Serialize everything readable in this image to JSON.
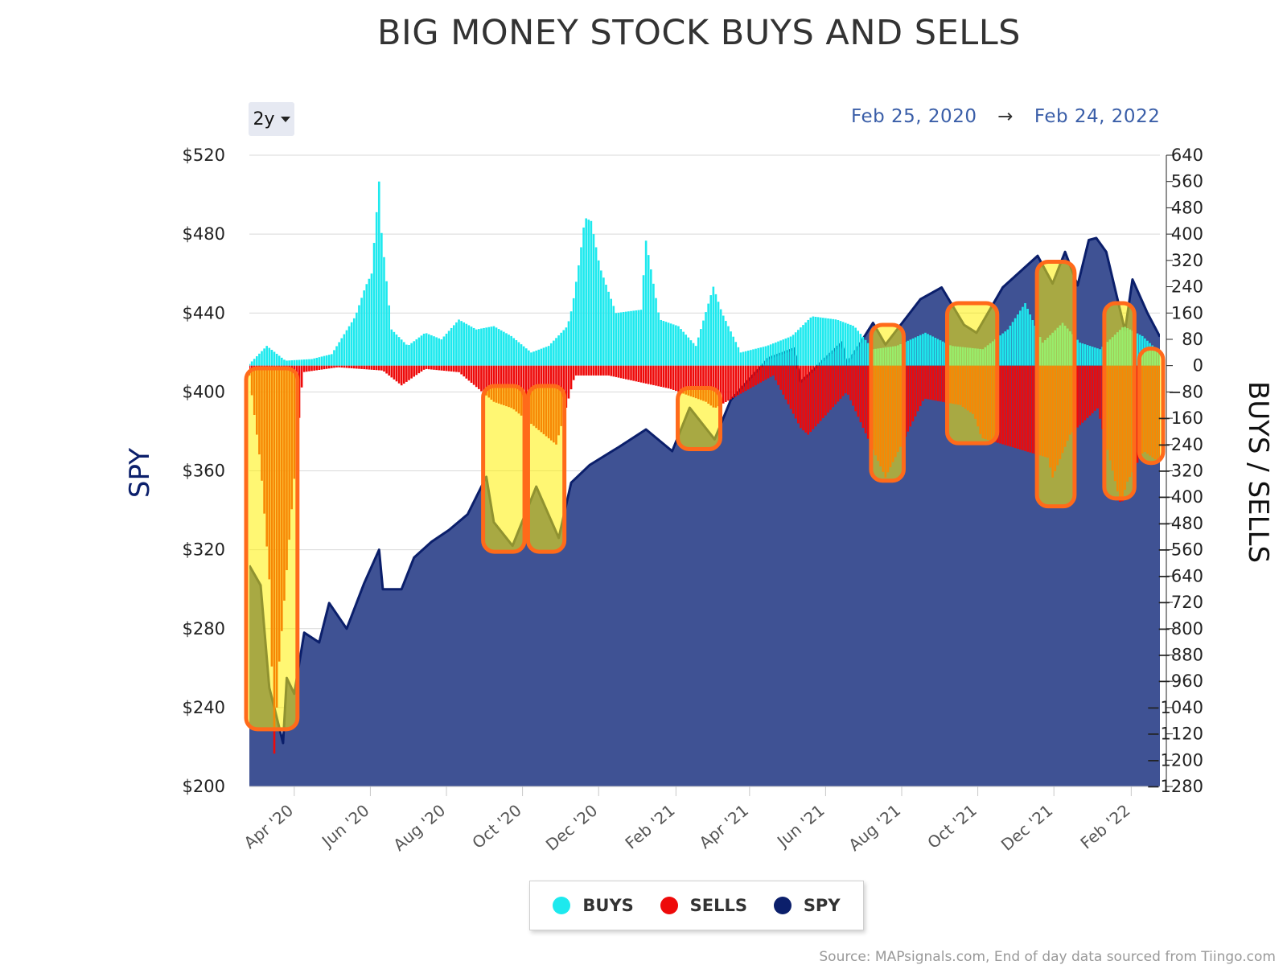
{
  "title": "BIG MONEY STOCK BUYS AND SELLS",
  "range_selector": {
    "label": "2y"
  },
  "date_range": {
    "start": "Feb 25, 2020",
    "arrow": "→",
    "end": "Feb 24, 2022"
  },
  "legend": [
    {
      "label": "BUYS",
      "color": "#1de9ee"
    },
    {
      "label": "SELLS",
      "color": "#ee0a0a"
    },
    {
      "label": "SPY",
      "color": "#0b1f6b"
    }
  ],
  "source": "Source: MAPsignals.com, End of day data sourced from Tiingo.com",
  "colors": {
    "spy_fill": "#3f5294",
    "spy_line": "#0b1f6b",
    "buys": "#1de9ee",
    "sells": "#ee0a0a",
    "highlight_fill": "#fff000",
    "highlight_border": "#ff6a1a"
  },
  "chart_data": {
    "type": "area",
    "x_start": "2020-02-25",
    "x_end": "2022-02-24",
    "x_tick_labels": [
      "Apr '20",
      "Jun '20",
      "Aug '20",
      "Oct '20",
      "Dec '20",
      "Feb '21",
      "Apr '21",
      "Jun '21",
      "Aug '21",
      "Oct '21",
      "Dec '21",
      "Feb '22"
    ],
    "left_axis": {
      "title": "SPY",
      "ylim": [
        200,
        520
      ],
      "ticks": [
        200,
        240,
        280,
        320,
        360,
        400,
        440,
        480,
        520
      ],
      "tick_labels": [
        "$200",
        "$240",
        "$280",
        "$320",
        "$360",
        "$400",
        "$440",
        "$480",
        "$520"
      ]
    },
    "right_axis": {
      "title": "BUYS / SELLS",
      "ylim": [
        -1280,
        640
      ],
      "ticks": [
        640,
        560,
        480,
        400,
        320,
        240,
        160,
        80,
        0,
        -80,
        -160,
        -240,
        -320,
        -400,
        -480,
        -560,
        -640,
        -720,
        -800,
        -880,
        -960,
        -1040,
        -1120,
        -1200,
        -1280
      ]
    },
    "series": [
      {
        "name": "SPY",
        "axis": "left",
        "points": [
          [
            "2020-02-25",
            312
          ],
          [
            "2020-03-05",
            302
          ],
          [
            "2020-03-12",
            250
          ],
          [
            "2020-03-16",
            240
          ],
          [
            "2020-03-23",
            222
          ],
          [
            "2020-03-26",
            255
          ],
          [
            "2020-04-01",
            247
          ],
          [
            "2020-04-09",
            278
          ],
          [
            "2020-04-21",
            273
          ],
          [
            "2020-04-29",
            293
          ],
          [
            "2020-05-13",
            280
          ],
          [
            "2020-05-27",
            303
          ],
          [
            "2020-06-08",
            320
          ],
          [
            "2020-06-11",
            300
          ],
          [
            "2020-06-26",
            300
          ],
          [
            "2020-07-06",
            316
          ],
          [
            "2020-07-20",
            324
          ],
          [
            "2020-08-03",
            330
          ],
          [
            "2020-08-18",
            338
          ],
          [
            "2020-09-02",
            357
          ],
          [
            "2020-09-08",
            334
          ],
          [
            "2020-09-23",
            322
          ],
          [
            "2020-10-12",
            352
          ],
          [
            "2020-10-30",
            326
          ],
          [
            "2020-11-09",
            354
          ],
          [
            "2020-11-24",
            363
          ],
          [
            "2020-12-17",
            372
          ],
          [
            "2021-01-08",
            381
          ],
          [
            "2021-01-29",
            370
          ],
          [
            "2021-02-12",
            392
          ],
          [
            "2021-03-04",
            376
          ],
          [
            "2021-03-17",
            396
          ],
          [
            "2021-04-16",
            417
          ],
          [
            "2021-05-07",
            422
          ],
          [
            "2021-05-12",
            405
          ],
          [
            "2021-06-14",
            425
          ],
          [
            "2021-06-18",
            414
          ],
          [
            "2021-07-09",
            435
          ],
          [
            "2021-07-19",
            424
          ],
          [
            "2021-08-16",
            447
          ],
          [
            "2021-09-02",
            453
          ],
          [
            "2021-09-20",
            434
          ],
          [
            "2021-09-30",
            430
          ],
          [
            "2021-10-21",
            453
          ],
          [
            "2021-11-18",
            469
          ],
          [
            "2021-11-30",
            455
          ],
          [
            "2021-12-10",
            471
          ],
          [
            "2021-12-20",
            454
          ],
          [
            "2021-12-29",
            477
          ],
          [
            "2022-01-04",
            478
          ],
          [
            "2022-01-12",
            471
          ],
          [
            "2022-01-27",
            431
          ],
          [
            "2022-02-02",
            457
          ],
          [
            "2022-02-14",
            440
          ],
          [
            "2022-02-24",
            428
          ]
        ]
      },
      {
        "name": "BUYS",
        "axis": "right",
        "points": [
          [
            "2020-02-25",
            5
          ],
          [
            "2020-03-10",
            60
          ],
          [
            "2020-03-25",
            15
          ],
          [
            "2020-04-15",
            20
          ],
          [
            "2020-05-01",
            35
          ],
          [
            "2020-05-20",
            150
          ],
          [
            "2020-05-28",
            240
          ],
          [
            "2020-06-02",
            280
          ],
          [
            "2020-06-08",
            560
          ],
          [
            "2020-06-09",
            440
          ],
          [
            "2020-06-18",
            110
          ],
          [
            "2020-07-01",
            60
          ],
          [
            "2020-07-15",
            100
          ],
          [
            "2020-07-28",
            80
          ],
          [
            "2020-08-11",
            140
          ],
          [
            "2020-08-25",
            110
          ],
          [
            "2020-09-08",
            120
          ],
          [
            "2020-09-22",
            90
          ],
          [
            "2020-10-08",
            40
          ],
          [
            "2020-10-22",
            60
          ],
          [
            "2020-11-06",
            120
          ],
          [
            "2020-11-10",
            180
          ],
          [
            "2020-11-16",
            330
          ],
          [
            "2020-11-20",
            450
          ],
          [
            "2020-11-25",
            440
          ],
          [
            "2020-12-02",
            300
          ],
          [
            "2020-12-15",
            160
          ],
          [
            "2021-01-04",
            170
          ],
          [
            "2021-01-08",
            380
          ],
          [
            "2021-01-19",
            140
          ],
          [
            "2021-02-03",
            120
          ],
          [
            "2021-02-17",
            60
          ],
          [
            "2021-03-03",
            240
          ],
          [
            "2021-03-10",
            160
          ],
          [
            "2021-03-25",
            40
          ],
          [
            "2021-04-15",
            60
          ],
          [
            "2021-05-05",
            90
          ],
          [
            "2021-05-21",
            150
          ],
          [
            "2021-06-10",
            140
          ],
          [
            "2021-06-24",
            120
          ],
          [
            "2021-07-09",
            50
          ],
          [
            "2021-07-28",
            60
          ],
          [
            "2021-08-20",
            100
          ],
          [
            "2021-09-10",
            60
          ],
          [
            "2021-10-05",
            50
          ],
          [
            "2021-10-25",
            110
          ],
          [
            "2021-11-08",
            190
          ],
          [
            "2021-11-22",
            70
          ],
          [
            "2021-12-08",
            130
          ],
          [
            "2021-12-22",
            70
          ],
          [
            "2022-01-07",
            50
          ],
          [
            "2022-01-26",
            120
          ],
          [
            "2022-02-10",
            90
          ],
          [
            "2022-02-24",
            40
          ]
        ]
      },
      {
        "name": "SELLS",
        "axis": "right",
        "points": [
          [
            "2020-02-25",
            -30
          ],
          [
            "2020-03-05",
            -300
          ],
          [
            "2020-03-12",
            -650
          ],
          [
            "2020-03-16",
            -1180
          ],
          [
            "2020-03-20",
            -900
          ],
          [
            "2020-04-08",
            -20
          ],
          [
            "2020-05-06",
            -5
          ],
          [
            "2020-06-11",
            -15
          ],
          [
            "2020-06-26",
            -60
          ],
          [
            "2020-07-15",
            -10
          ],
          [
            "2020-08-11",
            -20
          ],
          [
            "2020-09-08",
            -110
          ],
          [
            "2020-09-23",
            -130
          ],
          [
            "2020-10-28",
            -240
          ],
          [
            "2020-11-12",
            -30
          ],
          [
            "2020-12-09",
            -30
          ],
          [
            "2021-01-27",
            -70
          ],
          [
            "2021-02-25",
            -110
          ],
          [
            "2021-03-04",
            -130
          ],
          [
            "2021-04-20",
            -30
          ],
          [
            "2021-05-12",
            -190
          ],
          [
            "2021-05-18",
            -210
          ],
          [
            "2021-06-18",
            -80
          ],
          [
            "2021-07-19",
            -340
          ],
          [
            "2021-08-19",
            -100
          ],
          [
            "2021-09-17",
            -120
          ],
          [
            "2021-09-28",
            -150
          ],
          [
            "2021-10-04",
            -220
          ],
          [
            "2021-11-26",
            -280
          ],
          [
            "2021-11-30",
            -340
          ],
          [
            "2021-12-14",
            -210
          ],
          [
            "2022-01-05",
            -130
          ],
          [
            "2022-01-24",
            -430
          ],
          [
            "2022-01-28",
            -360
          ],
          [
            "2022-02-11",
            -260
          ],
          [
            "2022-02-22",
            -290
          ]
        ]
      }
    ],
    "highlights": [
      {
        "x0": "2020-02-25",
        "x1": "2020-04-01",
        "y_top": 412,
        "y_bottom": 229
      },
      {
        "x0": "2020-09-02",
        "x1": "2020-09-30",
        "y_top": 403,
        "y_bottom": 319
      },
      {
        "x0": "2020-10-08",
        "x1": "2020-11-01",
        "y_top": 403,
        "y_bottom": 319
      },
      {
        "x0": "2021-02-05",
        "x1": "2021-03-06",
        "y_top": 402,
        "y_bottom": 371
      },
      {
        "x0": "2021-07-10",
        "x1": "2021-07-31",
        "y_top": 434,
        "y_bottom": 355
      },
      {
        "x0": "2021-09-09",
        "x1": "2021-10-14",
        "y_top": 445,
        "y_bottom": 374
      },
      {
        "x0": "2021-11-20",
        "x1": "2021-12-15",
        "y_top": 466,
        "y_bottom": 342
      },
      {
        "x0": "2022-01-13",
        "x1": "2022-02-01",
        "y_top": 445,
        "y_bottom": 346
      },
      {
        "x0": "2022-02-10",
        "x1": "2022-02-24",
        "y_top": 422,
        "y_bottom": 364
      }
    ]
  }
}
